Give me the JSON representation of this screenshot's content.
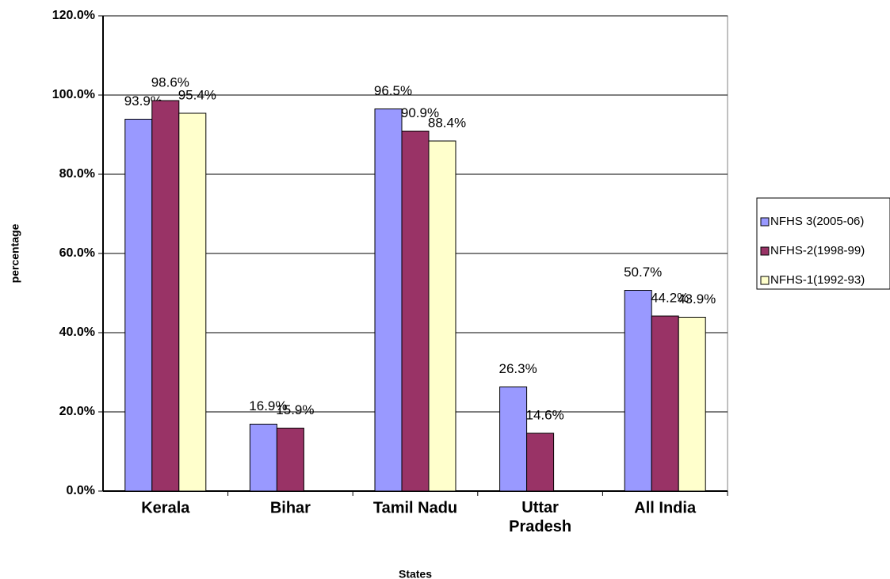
{
  "chart_data": {
    "type": "bar",
    "y_label": "percentage",
    "x_label": "States",
    "categories": [
      "Kerala",
      "Bihar",
      "Tamil Nadu",
      "Uttar Pradesh",
      "All India"
    ],
    "series": [
      {
        "name": "NFHS 3(2005-06)",
        "color": "#9999ff",
        "values": [
          93.9,
          16.9,
          96.5,
          26.3,
          50.7
        ],
        "value_labels": [
          "93.9%",
          "16.9%",
          "96.5%",
          "26.3%",
          "50.7%"
        ]
      },
      {
        "name": "NFHS-2(1998-99)",
        "color": "#993366",
        "values": [
          98.6,
          15.9,
          90.9,
          14.6,
          44.2
        ],
        "value_labels": [
          "98.6%",
          "15.9%",
          "90.9%",
          "14.6%",
          "44.2%"
        ]
      },
      {
        "name": "NFHS-1(1992-93)",
        "color": "#ffffcc",
        "values": [
          95.4,
          null,
          88.4,
          null,
          43.9
        ],
        "value_labels": [
          "95.4%",
          null,
          "88.4%",
          null,
          "43.9%"
        ]
      }
    ],
    "ylim": [
      0,
      120
    ],
    "yticks": [
      {
        "value": 0,
        "label": "0.0%"
      },
      {
        "value": 20,
        "label": "20.0%"
      },
      {
        "value": 40,
        "label": "40.0%"
      },
      {
        "value": 60,
        "label": "60.0%"
      },
      {
        "value": 80,
        "label": "80.0%"
      },
      {
        "value": 100,
        "label": "100.0%"
      },
      {
        "value": 120,
        "label": "120.0%"
      }
    ],
    "grid": true,
    "legend": "right"
  }
}
